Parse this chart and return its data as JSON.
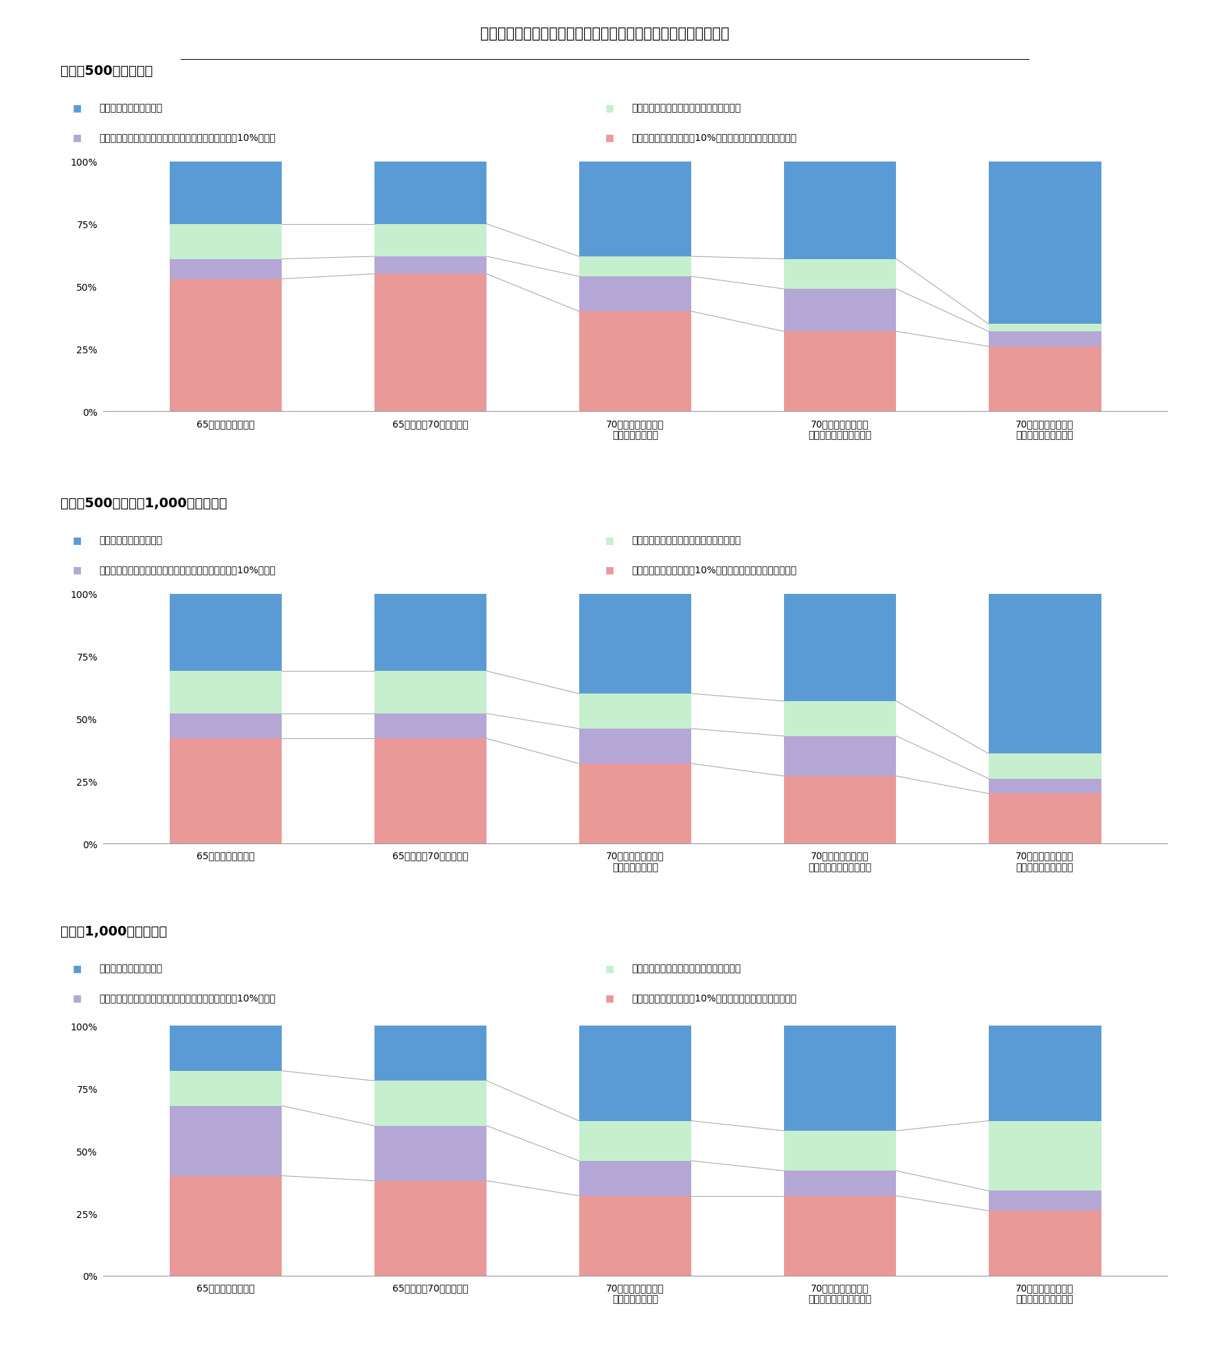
{
  "title": "図表５：公的年金の繰下げ支給や就労延長の効果（所得水準別）",
  "section_titles": [
    "【年収500万円未満】",
    "【年収500万円以上1,000万円未満】",
    "【年収1,000万円以上】"
  ],
  "categories": [
    "65歳退職・受給開始",
    "65歳退職・70歳受給開始",
    "70歳退職・受給開始\n（短時間労働者）",
    "70歳退職・受給開始\n（非正規の一般労働者）",
    "70歳退職・受給開始\n（正規の一般労働者）"
  ],
  "group_colors": [
    "#5B9BD5",
    "#C6EFCE",
    "#B4A7D6",
    "#EA9999"
  ],
  "legend_label_g1": "グループ１（既に保有）",
  "legend_label_g2": "グループ２（今後の資金計画次第で達成）",
  "legend_label_g3": "グループ３（今後の資金計画次第で生活水準の低下は10%未満）",
  "legend_label_g4": "グループ４（生活水準が10%以上低下する可能性が大きい）",
  "data": [
    {
      "g4": [
        53,
        55,
        40,
        32,
        26
      ],
      "g3": [
        8,
        7,
        14,
        17,
        6
      ],
      "g2": [
        14,
        13,
        8,
        12,
        3
      ],
      "g1": [
        25,
        25,
        38,
        39,
        65
      ]
    },
    {
      "g4": [
        42,
        42,
        32,
        27,
        20
      ],
      "g3": [
        10,
        10,
        14,
        16,
        6
      ],
      "g2": [
        17,
        17,
        14,
        14,
        10
      ],
      "g1": [
        31,
        31,
        40,
        43,
        64
      ]
    },
    {
      "g4": [
        40,
        38,
        32,
        32,
        26
      ],
      "g3": [
        28,
        22,
        14,
        10,
        8
      ],
      "g2": [
        14,
        18,
        16,
        16,
        28
      ],
      "g1": [
        18,
        22,
        38,
        42,
        38
      ]
    }
  ],
  "background_color": "#FFFFFF",
  "title_fontsize": 15,
  "section_fontsize": 14,
  "legend_fontsize": 10,
  "tick_fontsize": 10,
  "ytick_labels": [
    "0%",
    "25%",
    "50%",
    "75%",
    "100%"
  ]
}
